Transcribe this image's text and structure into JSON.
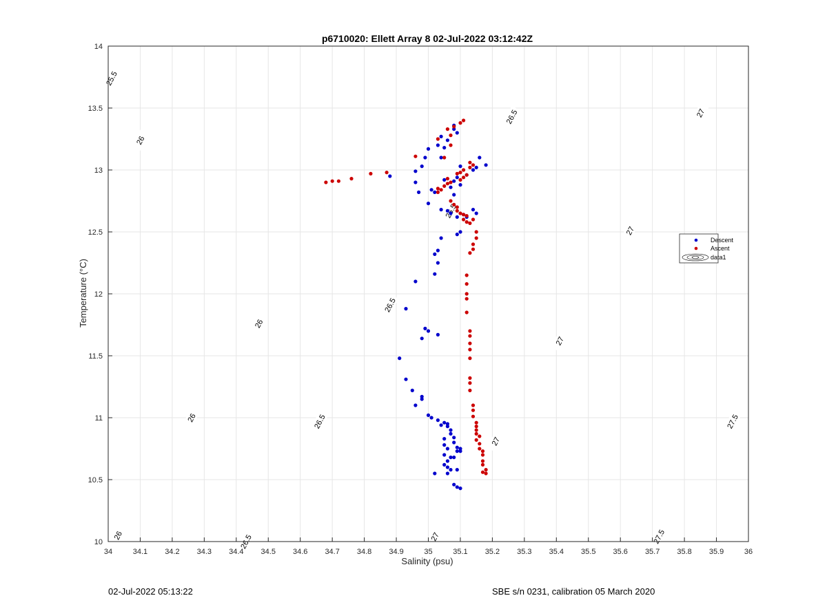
{
  "chart_data": {
    "type": "scatter",
    "title": "p6710020: Ellett Array 8 02-Jul-2022 03:12:42Z",
    "xlabel": "Salinity (psu)",
    "ylabel": "Temperature (°C)",
    "xlim": [
      34,
      36
    ],
    "ylim": [
      10,
      14
    ],
    "xticks": [
      "34",
      "34.1",
      "34.2",
      "34.3",
      "34.4",
      "34.5",
      "34.6",
      "34.7",
      "34.8",
      "34.9",
      "35",
      "35.1",
      "35.2",
      "35.3",
      "35.4",
      "35.5",
      "35.6",
      "35.7",
      "35.8",
      "35.9",
      "36"
    ],
    "yticks": [
      "10",
      "10.5",
      "11",
      "11.5",
      "12",
      "12.5",
      "13",
      "13.5",
      "14"
    ],
    "grid": true,
    "legend_position": "east",
    "legend": [
      "Descent",
      "Ascent",
      "data1"
    ],
    "colors": {
      "descent": "#0000cc",
      "ascent": "#cc0000",
      "contour": "#000000",
      "grid": "#e6e6e6"
    },
    "contour_levels": [
      "25.5",
      "26",
      "26.5",
      "27",
      "27.5"
    ],
    "contour_labels": [
      {
        "text": "25.5",
        "s": 34.01,
        "t": 13.74
      },
      {
        "text": "26",
        "s": 34.1,
        "t": 13.24
      },
      {
        "text": "26",
        "s": 34.47,
        "t": 11.76
      },
      {
        "text": "26",
        "s": 34.26,
        "t": 11.0
      },
      {
        "text": "26",
        "s": 34.03,
        "t": 10.05
      },
      {
        "text": "26.5",
        "s": 35.07,
        "t": 12.67
      },
      {
        "text": "26.5",
        "s": 35.26,
        "t": 13.43
      },
      {
        "text": "26.5",
        "s": 34.88,
        "t": 11.91
      },
      {
        "text": "26.5",
        "s": 34.66,
        "t": 10.97
      },
      {
        "text": "26.5",
        "s": 34.43,
        "t": 10.0
      },
      {
        "text": "27",
        "s": 35.85,
        "t": 13.46
      },
      {
        "text": "27",
        "s": 35.63,
        "t": 12.51
      },
      {
        "text": "27",
        "s": 35.41,
        "t": 11.62
      },
      {
        "text": "27",
        "s": 35.21,
        "t": 10.81
      },
      {
        "text": "27",
        "s": 35.02,
        "t": 10.04
      },
      {
        "text": "27.5",
        "s": 35.95,
        "t": 10.97
      },
      {
        "text": "27.5",
        "s": 35.72,
        "t": 10.04
      }
    ],
    "series": [
      {
        "name": "Descent",
        "points": [
          [
            35.08,
            13.36
          ],
          [
            35.08,
            13.33
          ],
          [
            35.09,
            13.3
          ],
          [
            35.04,
            13.27
          ],
          [
            35.06,
            13.24
          ],
          [
            35.03,
            13.2
          ],
          [
            35.05,
            13.18
          ],
          [
            35.0,
            13.17
          ],
          [
            34.99,
            13.1
          ],
          [
            35.04,
            13.1
          ],
          [
            35.16,
            13.1
          ],
          [
            35.18,
            13.04
          ],
          [
            35.15,
            13.02
          ],
          [
            35.1,
            13.03
          ],
          [
            34.98,
            13.03
          ],
          [
            35.14,
            13.0
          ],
          [
            34.96,
            12.99
          ],
          [
            35.12,
            12.96
          ],
          [
            34.88,
            12.95
          ],
          [
            35.09,
            12.94
          ],
          [
            35.05,
            12.92
          ],
          [
            35.08,
            12.91
          ],
          [
            34.96,
            12.9
          ],
          [
            35.1,
            12.88
          ],
          [
            35.07,
            12.86
          ],
          [
            35.01,
            12.84
          ],
          [
            35.02,
            12.82
          ],
          [
            34.97,
            12.82
          ],
          [
            35.08,
            12.8
          ],
          [
            35.0,
            12.73
          ],
          [
            35.04,
            12.68
          ],
          [
            35.14,
            12.68
          ],
          [
            35.06,
            12.67
          ],
          [
            35.15,
            12.65
          ],
          [
            35.07,
            12.65
          ],
          [
            35.11,
            12.64
          ],
          [
            35.09,
            12.62
          ],
          [
            35.12,
            12.62
          ],
          [
            35.1,
            12.5
          ],
          [
            35.09,
            12.48
          ],
          [
            35.04,
            12.45
          ],
          [
            35.03,
            12.35
          ],
          [
            35.02,
            12.32
          ],
          [
            35.03,
            12.25
          ],
          [
            35.02,
            12.16
          ],
          [
            34.96,
            12.1
          ],
          [
            34.93,
            11.88
          ],
          [
            34.99,
            11.72
          ],
          [
            35.0,
            11.7
          ],
          [
            35.03,
            11.67
          ],
          [
            34.98,
            11.64
          ],
          [
            34.91,
            11.48
          ],
          [
            34.93,
            11.31
          ],
          [
            34.95,
            11.22
          ],
          [
            34.98,
            11.17
          ],
          [
            34.98,
            11.15
          ],
          [
            34.96,
            11.1
          ],
          [
            35.0,
            11.02
          ],
          [
            35.01,
            11.0
          ],
          [
            35.03,
            10.98
          ],
          [
            35.05,
            10.96
          ],
          [
            35.06,
            10.95
          ],
          [
            35.04,
            10.94
          ],
          [
            35.06,
            10.93
          ],
          [
            35.07,
            10.9
          ],
          [
            35.07,
            10.87
          ],
          [
            35.08,
            10.84
          ],
          [
            35.05,
            10.83
          ],
          [
            35.08,
            10.8
          ],
          [
            35.05,
            10.78
          ],
          [
            35.09,
            10.76
          ],
          [
            35.1,
            10.75
          ],
          [
            35.09,
            10.73
          ],
          [
            35.1,
            10.73
          ],
          [
            35.06,
            10.75
          ],
          [
            35.05,
            10.7
          ],
          [
            35.07,
            10.68
          ],
          [
            35.08,
            10.68
          ],
          [
            35.06,
            10.65
          ],
          [
            35.05,
            10.62
          ],
          [
            35.06,
            10.6
          ],
          [
            35.07,
            10.58
          ],
          [
            35.09,
            10.58
          ],
          [
            35.06,
            10.55
          ],
          [
            35.02,
            10.55
          ],
          [
            35.08,
            10.46
          ],
          [
            35.09,
            10.44
          ],
          [
            35.1,
            10.43
          ]
        ]
      },
      {
        "name": "Ascent",
        "points": [
          [
            35.11,
            13.4
          ],
          [
            35.1,
            13.38
          ],
          [
            35.08,
            13.35
          ],
          [
            35.06,
            13.33
          ],
          [
            35.07,
            13.28
          ],
          [
            35.03,
            13.25
          ],
          [
            35.07,
            13.2
          ],
          [
            34.96,
            13.11
          ],
          [
            35.05,
            13.1
          ],
          [
            35.13,
            13.06
          ],
          [
            35.14,
            13.04
          ],
          [
            35.13,
            13.02
          ],
          [
            35.11,
            13.0
          ],
          [
            35.1,
            12.98
          ],
          [
            35.09,
            12.97
          ],
          [
            35.12,
            12.96
          ],
          [
            35.11,
            12.94
          ],
          [
            35.06,
            12.93
          ],
          [
            35.1,
            12.92
          ],
          [
            34.76,
            12.93
          ],
          [
            34.82,
            12.97
          ],
          [
            34.87,
            12.98
          ],
          [
            34.72,
            12.91
          ],
          [
            34.7,
            12.91
          ],
          [
            34.68,
            12.9
          ],
          [
            35.07,
            12.9
          ],
          [
            35.06,
            12.89
          ],
          [
            35.05,
            12.87
          ],
          [
            35.03,
            12.85
          ],
          [
            35.04,
            12.84
          ],
          [
            35.03,
            12.82
          ],
          [
            35.07,
            12.75
          ],
          [
            35.08,
            12.72
          ],
          [
            35.09,
            12.7
          ],
          [
            35.09,
            12.67
          ],
          [
            35.1,
            12.65
          ],
          [
            35.11,
            12.64
          ],
          [
            35.12,
            12.63
          ],
          [
            35.11,
            12.6
          ],
          [
            35.14,
            12.6
          ],
          [
            35.12,
            12.58
          ],
          [
            35.13,
            12.57
          ],
          [
            35.15,
            12.5
          ],
          [
            35.15,
            12.45
          ],
          [
            35.14,
            12.4
          ],
          [
            35.14,
            12.36
          ],
          [
            35.13,
            12.33
          ],
          [
            35.12,
            12.15
          ],
          [
            35.12,
            12.08
          ],
          [
            35.12,
            12.0
          ],
          [
            35.12,
            11.96
          ],
          [
            35.12,
            11.85
          ],
          [
            35.13,
            11.7
          ],
          [
            35.13,
            11.66
          ],
          [
            35.13,
            11.6
          ],
          [
            35.13,
            11.55
          ],
          [
            35.13,
            11.48
          ],
          [
            35.13,
            11.32
          ],
          [
            35.13,
            11.28
          ],
          [
            35.13,
            11.22
          ],
          [
            35.14,
            11.1
          ],
          [
            35.14,
            11.06
          ],
          [
            35.14,
            11.01
          ],
          [
            35.15,
            10.96
          ],
          [
            35.15,
            10.93
          ],
          [
            35.15,
            10.9
          ],
          [
            35.15,
            10.87
          ],
          [
            35.16,
            10.85
          ],
          [
            35.15,
            10.82
          ],
          [
            35.16,
            10.79
          ],
          [
            35.16,
            10.75
          ],
          [
            35.17,
            10.73
          ],
          [
            35.17,
            10.7
          ],
          [
            35.17,
            10.65
          ],
          [
            35.17,
            10.62
          ],
          [
            35.18,
            10.58
          ],
          [
            35.18,
            10.55
          ],
          [
            35.17,
            10.56
          ]
        ]
      }
    ],
    "footer_left": "02-Jul-2022 05:13:22",
    "footer_right": "SBE s/n 0231, calibration 05 March 2020"
  }
}
